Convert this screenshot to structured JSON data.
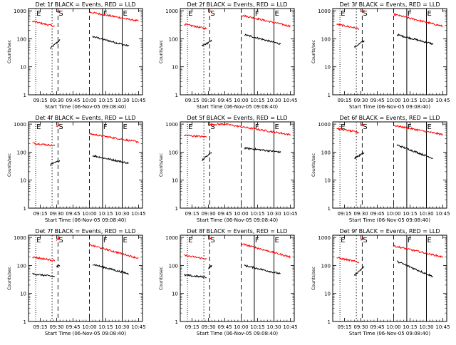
{
  "chart_data": [
    {
      "type": "line",
      "title": "Det 1f BLACK = Events, RED = LLD",
      "xlabel": "Start Time (06-Nov-05 09:08:40)",
      "ylabel": "Counts/sec",
      "markers": {
        "E1": 9.18,
        "S": 9.52,
        "F": 10.2,
        "E2": 10.5
      },
      "dashed": {
        "a": 9.52,
        "b": 10.0
      },
      "series": [
        {
          "color": "#000000",
          "ranges": [
            [
              9.4,
              9.55,
              45,
              90
            ],
            [
              10.05,
              10.6,
              120,
              55
            ]
          ]
        },
        {
          "color": "#ff0000",
          "ranges": [
            [
              9.13,
              9.47,
              420,
              280
            ],
            [
              9.5,
              9.55,
              900,
              1000
            ],
            [
              10.0,
              10.75,
              900,
              430
            ]
          ]
        }
      ]
    },
    {
      "type": "line",
      "title": "Det 2f BLACK = Events, RED = LLD",
      "xlabel": "Start Time (06-Nov-05 09:08:40)",
      "ylabel": "Counts/sec",
      "markers": {
        "E1": 9.18,
        "S": 9.52,
        "F": 10.2,
        "E2": 10.5
      },
      "dashed": {
        "a": 9.52,
        "b": 10.0
      },
      "series": [
        {
          "color": "#000000",
          "ranges": [
            [
              9.4,
              9.55,
              55,
              85
            ],
            [
              10.05,
              10.6,
              140,
              65
            ]
          ]
        },
        {
          "color": "#ff0000",
          "ranges": [
            [
              9.13,
              9.47,
              330,
              230
            ],
            [
              9.5,
              9.55,
              900,
              1000
            ],
            [
              10.0,
              10.75,
              700,
              280
            ]
          ]
        }
      ]
    },
    {
      "type": "line",
      "title": "Det 3f BLACK = Events, RED = LLD",
      "xlabel": "Start Time (06-Nov-05 09:08:40)",
      "ylabel": "Counts/sec",
      "markers": {
        "E1": 9.18,
        "S": 9.52,
        "F": 10.2,
        "E2": 10.5
      },
      "dashed": {
        "a": 9.52,
        "b": 10.0
      },
      "series": [
        {
          "color": "#000000",
          "ranges": [
            [
              9.4,
              9.55,
              50,
              85
            ],
            [
              10.05,
              10.6,
              140,
              65
            ]
          ]
        },
        {
          "color": "#ff0000",
          "ranges": [
            [
              9.13,
              9.47,
              330,
              230
            ],
            [
              9.5,
              9.55,
              900,
              1000
            ],
            [
              10.0,
              10.75,
              750,
              280
            ]
          ]
        }
      ]
    },
    {
      "type": "line",
      "title": "Det 4f BLACK = Events, RED = LLD",
      "xlabel": "Start Time (06-Nov-05 09:08:40)",
      "ylabel": "Counts/sec",
      "markers": {
        "E1": 9.18,
        "S": 9.52,
        "F": 10.2,
        "E2": 10.5
      },
      "dashed": {
        "a": 9.52,
        "b": 10.0
      },
      "series": [
        {
          "color": "#000000",
          "ranges": [
            [
              9.4,
              9.55,
              35,
              50
            ],
            [
              10.05,
              10.6,
              75,
              40
            ]
          ]
        },
        {
          "color": "#ff0000",
          "ranges": [
            [
              9.13,
              9.47,
              210,
              170
            ],
            [
              9.5,
              9.55,
              800,
              1000
            ],
            [
              10.0,
              10.75,
              450,
              230
            ]
          ]
        }
      ]
    },
    {
      "type": "line",
      "title": "Det 5f BLACK = Events, RED = LLD",
      "xlabel": "Start Time (06-Nov-05 09:08:40)",
      "ylabel": "Counts/sec",
      "markers": {
        "E1": 9.18,
        "S": 9.52,
        "F": 10.2,
        "E2": 10.5
      },
      "dashed": {
        "a": 9.52,
        "b": 10.0
      },
      "series": [
        {
          "color": "#000000",
          "ranges": [
            [
              9.4,
              9.55,
              50,
              100
            ],
            [
              10.05,
              10.6,
              140,
              100
            ]
          ]
        },
        {
          "color": "#ff0000",
          "ranges": [
            [
              9.13,
              9.47,
              400,
              350
            ],
            [
              9.5,
              9.75,
              950,
              1000
            ],
            [
              9.75,
              10.75,
              1000,
              420
            ]
          ]
        }
      ]
    },
    {
      "type": "line",
      "title": "Det 6f BLACK = Events, RED = LLD",
      "xlabel": "Start Time (06-Nov-05 09:08:40)",
      "ylabel": "Counts/sec",
      "markers": {
        "E1": 9.18,
        "S": 9.52,
        "F": 10.2,
        "E2": 10.5
      },
      "dashed": {
        "a": 9.52,
        "b": 10.0
      },
      "series": [
        {
          "color": "#000000",
          "ranges": [
            [
              9.4,
              9.55,
              60,
              95
            ],
            [
              10.05,
              10.6,
              180,
              60
            ]
          ]
        },
        {
          "color": "#ff0000",
          "ranges": [
            [
              9.13,
              9.47,
              700,
              500
            ],
            [
              9.5,
              9.55,
              900,
              1000
            ],
            [
              10.0,
              10.75,
              900,
              420
            ]
          ]
        }
      ]
    },
    {
      "type": "line",
      "title": "Det 7f BLACK = Events, RED = LLD",
      "xlabel": "Start Time (06-Nov-05 09:08:40)",
      "ylabel": "Counts/sec",
      "markers": {
        "E1": 9.18,
        "S": 9.52,
        "F": 10.2,
        "E2": 10.5
      },
      "dashed": {
        "a": 9.52,
        "b": 10.0
      },
      "series": [
        {
          "color": "#000000",
          "ranges": [
            [
              9.13,
              9.47,
              50,
              40
            ],
            [
              9.5,
              9.55,
              90,
              100
            ],
            [
              10.05,
              10.6,
              110,
              50
            ]
          ]
        },
        {
          "color": "#ff0000",
          "ranges": [
            [
              9.13,
              9.47,
              200,
              150
            ],
            [
              9.5,
              9.55,
              800,
              1000
            ],
            [
              10.0,
              10.75,
              550,
              180
            ]
          ]
        }
      ]
    },
    {
      "type": "line",
      "title": "Det 8f BLACK = Events, RED = LLD",
      "xlabel": "Start Time (06-Nov-05 09:08:40)",
      "ylabel": "Counts/sec",
      "markers": {
        "E1": 9.18,
        "S": 9.52,
        "F": 10.2,
        "E2": 10.5
      },
      "dashed": {
        "a": 9.52,
        "b": 10.0
      },
      "series": [
        {
          "color": "#000000",
          "ranges": [
            [
              9.13,
              9.47,
              45,
              38
            ],
            [
              9.5,
              9.55,
              80,
              100
            ],
            [
              10.05,
              10.6,
              100,
              50
            ]
          ]
        },
        {
          "color": "#ff0000",
          "ranges": [
            [
              9.13,
              9.47,
              230,
              170
            ],
            [
              9.5,
              9.55,
              800,
              1000
            ],
            [
              10.0,
              10.75,
              600,
              200
            ]
          ]
        }
      ]
    },
    {
      "type": "line",
      "title": "Det 9f BLACK = Events, RED = LLD",
      "xlabel": "Start Time (06-Nov-05 09:08:40)",
      "ylabel": "Counts/sec",
      "markers": {
        "E1": 9.18,
        "S": 9.52,
        "F": 10.2,
        "E2": 10.5
      },
      "dashed": {
        "a": 9.52,
        "b": 10.0
      },
      "series": [
        {
          "color": "#000000",
          "ranges": [
            [
              9.4,
              9.55,
              45,
              90
            ],
            [
              10.05,
              10.6,
              140,
              40
            ]
          ]
        },
        {
          "color": "#ff0000",
          "ranges": [
            [
              9.13,
              9.47,
              190,
              130
            ],
            [
              9.5,
              9.55,
              800,
              1000
            ],
            [
              10.0,
              10.75,
              500,
              200
            ]
          ]
        }
      ]
    }
  ],
  "axes": {
    "xticks": [
      "09:15",
      "09:30",
      "09:45",
      "10:00",
      "10:15",
      "10:30",
      "10:45"
    ],
    "xtick_values": [
      9.25,
      9.5,
      9.75,
      10.0,
      10.25,
      10.5,
      10.75
    ],
    "yticks": [
      "1",
      "10",
      "100",
      "1000"
    ],
    "ytick_values": [
      1,
      10,
      100,
      1000
    ],
    "xlim": [
      9.07,
      10.81
    ],
    "ylim": [
      1,
      1200
    ],
    "yscale": "log",
    "marker_labels": {
      "E1": "E",
      "S": "S",
      "F": "F",
      "E2": "E"
    }
  },
  "colors": {
    "events": "#000000",
    "lld": "#ff0000"
  }
}
